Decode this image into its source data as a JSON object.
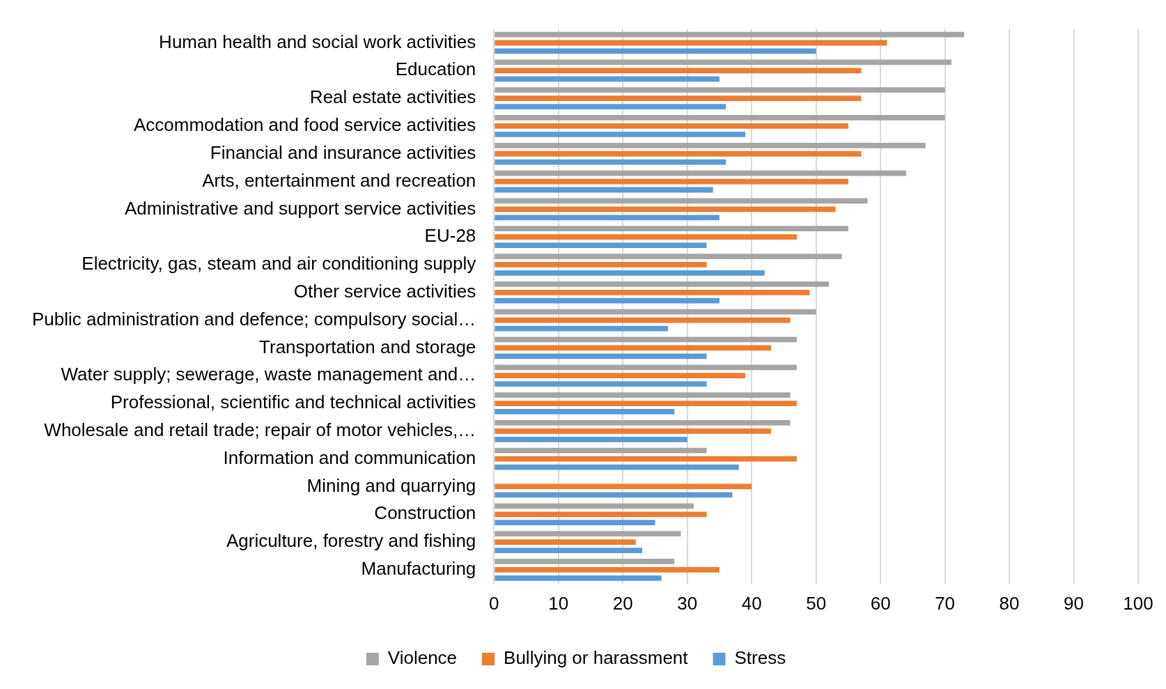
{
  "chart_data": {
    "type": "bar",
    "orientation": "horizontal",
    "categories": [
      "Human health and social work activities",
      "Education",
      "Real estate activities",
      "Accommodation and food service activities",
      "Financial and insurance activities",
      "Arts, entertainment and recreation",
      "Administrative and support service activities",
      "EU-28",
      "Electricity, gas, steam and air conditioning supply",
      "Other service activities",
      "Public administration and defence; compulsory social…",
      "Transportation and storage",
      "Water supply; sewerage, waste management and…",
      "Professional, scientific and technical activities",
      "Wholesale and retail trade; repair of motor vehicles,…",
      "Information and communication",
      "Mining and quarrying",
      "Construction",
      "Agriculture, forestry and fishing",
      "Manufacturing"
    ],
    "series": [
      {
        "name": "Violence",
        "color": "#a5a5a5",
        "values": [
          73,
          71,
          70,
          70,
          67,
          64,
          58,
          55,
          54,
          52,
          50,
          47,
          47,
          46,
          46,
          33,
          null,
          31,
          29,
          28
        ]
      },
      {
        "name": "Bullying or harassment",
        "color": "#ed7d31",
        "values": [
          61,
          57,
          57,
          55,
          57,
          55,
          53,
          47,
          33,
          49,
          46,
          43,
          39,
          47,
          43,
          47,
          40,
          33,
          22,
          35
        ]
      },
      {
        "name": "Stress",
        "color": "#5b9bd5",
        "values": [
          50,
          35,
          36,
          39,
          36,
          34,
          35,
          33,
          42,
          35,
          27,
          33,
          33,
          28,
          30,
          38,
          37,
          25,
          23,
          26
        ]
      }
    ],
    "xlim": [
      0,
      100
    ],
    "xticks": [
      0,
      10,
      20,
      30,
      40,
      50,
      60,
      70,
      80,
      90,
      100
    ],
    "grid": "x",
    "legend": "bottom"
  }
}
